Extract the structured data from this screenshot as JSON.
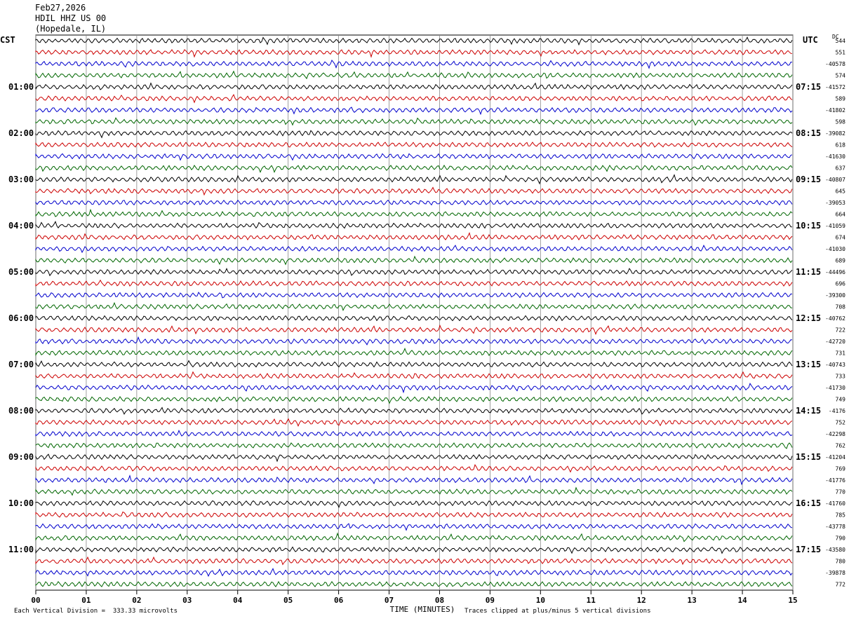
{
  "header": {
    "date": "Feb27,2026",
    "station": "HDIL HHZ US 00",
    "location": "(Hopedale, IL)"
  },
  "left_tz": "CST",
  "right_tz": "UTC",
  "dc_label": "DC",
  "footer": {
    "scale": "Each Vertical Division =  333.33 microvolts",
    "clip": "Traces clipped at plus/minus 5 vertical divisions"
  },
  "colors": {
    "trace": [
      "#000000",
      "#cc0000",
      "#0000cc",
      "#006600"
    ],
    "grid": "#888888"
  },
  "chart_data": {
    "type": "line",
    "subtype": "helicorder",
    "xlabel": "TIME (MINUTES)",
    "x_ticks": [
      "00",
      "01",
      "02",
      "03",
      "04",
      "05",
      "06",
      "07",
      "08",
      "09",
      "10",
      "11",
      "12",
      "13",
      "14",
      "15"
    ],
    "left_hour_labels": [
      "01:00",
      "02:00",
      "03:00",
      "04:00",
      "05:00",
      "06:00",
      "07:00",
      "08:00",
      "09:00",
      "10:00",
      "11:00"
    ],
    "right_hour_labels": [
      "07:15",
      "08:15",
      "09:15",
      "10:15",
      "11:15",
      "12:15",
      "13:15",
      "14:15",
      "15:15",
      "16:15",
      "17:15"
    ],
    "right_values": [
      "544",
      "551",
      "-40578",
      "574",
      "-41572",
      "589",
      "-41802",
      "598",
      "-39082",
      "618",
      "-41630",
      "637",
      "-40807",
      "645",
      "-39053",
      "664",
      "-41059",
      "674",
      "-41030",
      "689",
      "-44496",
      "696",
      "-39300",
      "708",
      "-40762",
      "722",
      "-42720",
      "731",
      "-40743",
      "733",
      "-41730",
      "749",
      "-4176",
      "752",
      "-42298",
      "762",
      "-41204",
      "769",
      "-41776",
      "770",
      "-41760",
      "785",
      "-43778",
      "790",
      "-43580",
      "780",
      "-39878",
      "772"
    ],
    "rows": 48,
    "minutes_per_row": 15,
    "vertical_division_microvolts": 333.33,
    "clip_divisions": 5
  }
}
